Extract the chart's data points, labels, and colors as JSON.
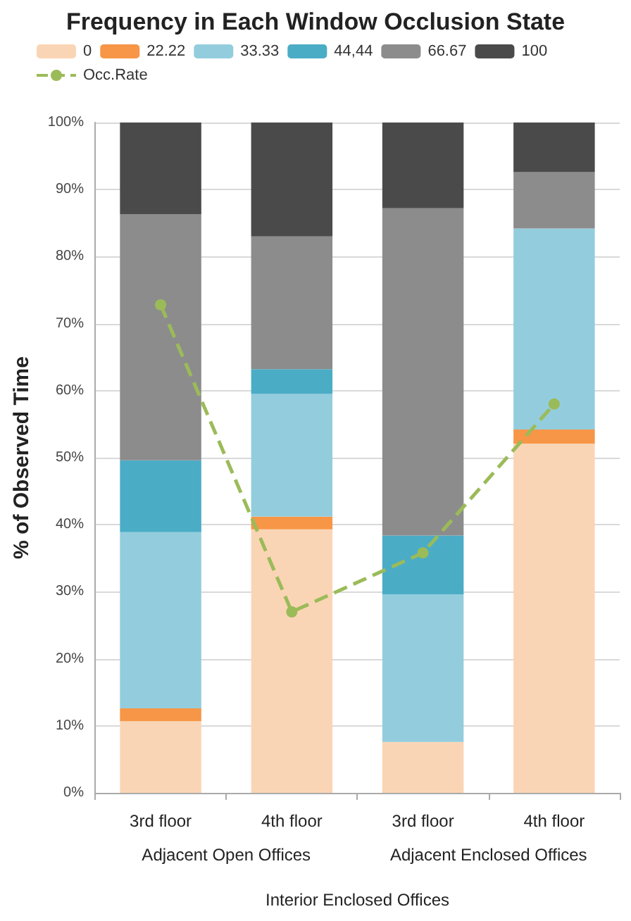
{
  "chart_data": {
    "type": "bar",
    "title": "Frequency in Each Window Occlusion State",
    "ylabel": "% of Observed Time",
    "xlabel": "Interior Enclosed Offices",
    "annotations": [
      "Adjacent Open Offices",
      "Adjacent Enclosed Offices"
    ],
    "categories": [
      "3rd floor",
      "4th floor",
      "3rd floor",
      "4th floor"
    ],
    "stacked": true,
    "series": [
      {
        "name": "0",
        "color": "#fad5b5",
        "values": [
          10.7,
          39.3,
          7.6,
          52.1
        ]
      },
      {
        "name": "22.22",
        "color": "#f79646",
        "values": [
          1.9,
          1.9,
          0,
          2.1
        ]
      },
      {
        "name": "33.33",
        "color": "#93cddd",
        "values": [
          26.3,
          18.3,
          22,
          30
        ]
      },
      {
        "name": "44,44",
        "color": "#4bacc6",
        "values": [
          10.7,
          3.7,
          8.8,
          0
        ]
      },
      {
        "name": "66.67",
        "color": "#8c8c8c",
        "values": [
          36.7,
          19.8,
          48.8,
          8.4
        ]
      },
      {
        "name": "100",
        "color": "#4a4a4a",
        "values": [
          13.7,
          17,
          12.8,
          7.4
        ]
      },
      {
        "name": "Occ.Rate",
        "type": "line",
        "color": "#9bbb59",
        "marker": "circle",
        "line_style": "dashed",
        "values": [
          72.8,
          27,
          35.8,
          58
        ]
      }
    ],
    "ylim": [
      0,
      100
    ],
    "yticks": [
      {
        "value": 0,
        "label": "0%"
      },
      {
        "value": 10,
        "label": "10%"
      },
      {
        "value": 20,
        "label": "20%"
      },
      {
        "value": 30,
        "label": "30%"
      },
      {
        "value": 40,
        "label": "40%"
      },
      {
        "value": 50,
        "label": "50%"
      },
      {
        "value": 60,
        "label": "60%"
      },
      {
        "value": 70,
        "label": "70%"
      },
      {
        "value": 80,
        "label": "80%"
      },
      {
        "value": 90,
        "label": "90%"
      },
      {
        "value": 100,
        "label": "100%"
      }
    ],
    "grid": "y",
    "legend": "top"
  }
}
